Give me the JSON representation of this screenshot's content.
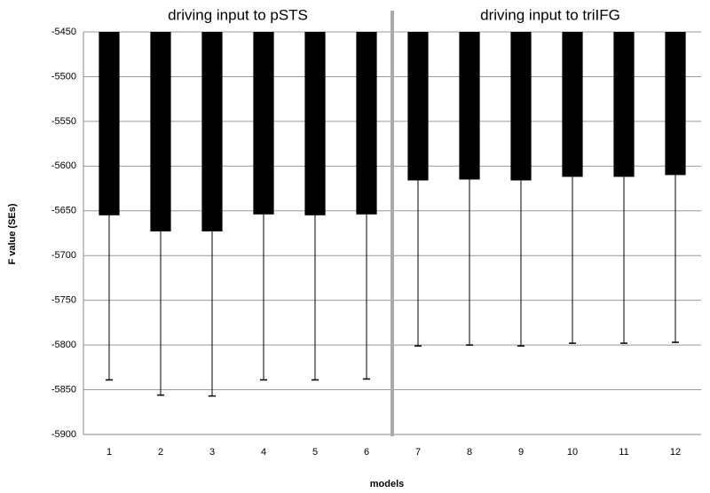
{
  "chart_data": {
    "type": "bar",
    "annotations": [
      "driving input to pSTS",
      "driving input to triIFG"
    ],
    "x_label": "models",
    "y_label": "F value (SEs)",
    "categories": [
      "1",
      "2",
      "3",
      "4",
      "5",
      "6",
      "7",
      "8",
      "9",
      "10",
      "11",
      "12"
    ],
    "values": [
      -5655,
      -5673,
      -5673,
      -5654,
      -5655,
      -5654,
      -5616,
      -5615,
      -5616,
      -5612,
      -5612,
      -5610
    ],
    "errors": [
      184,
      183,
      184,
      185,
      184,
      184,
      185,
      185,
      185,
      186,
      186,
      187
    ],
    "color": "#000000",
    "ylim": [
      -5900,
      -5450
    ],
    "yticks": [
      -5450,
      -5500,
      -5550,
      -5600,
      -5650,
      -5700,
      -5750,
      -5800,
      -5850,
      -5900
    ],
    "grid": true
  }
}
